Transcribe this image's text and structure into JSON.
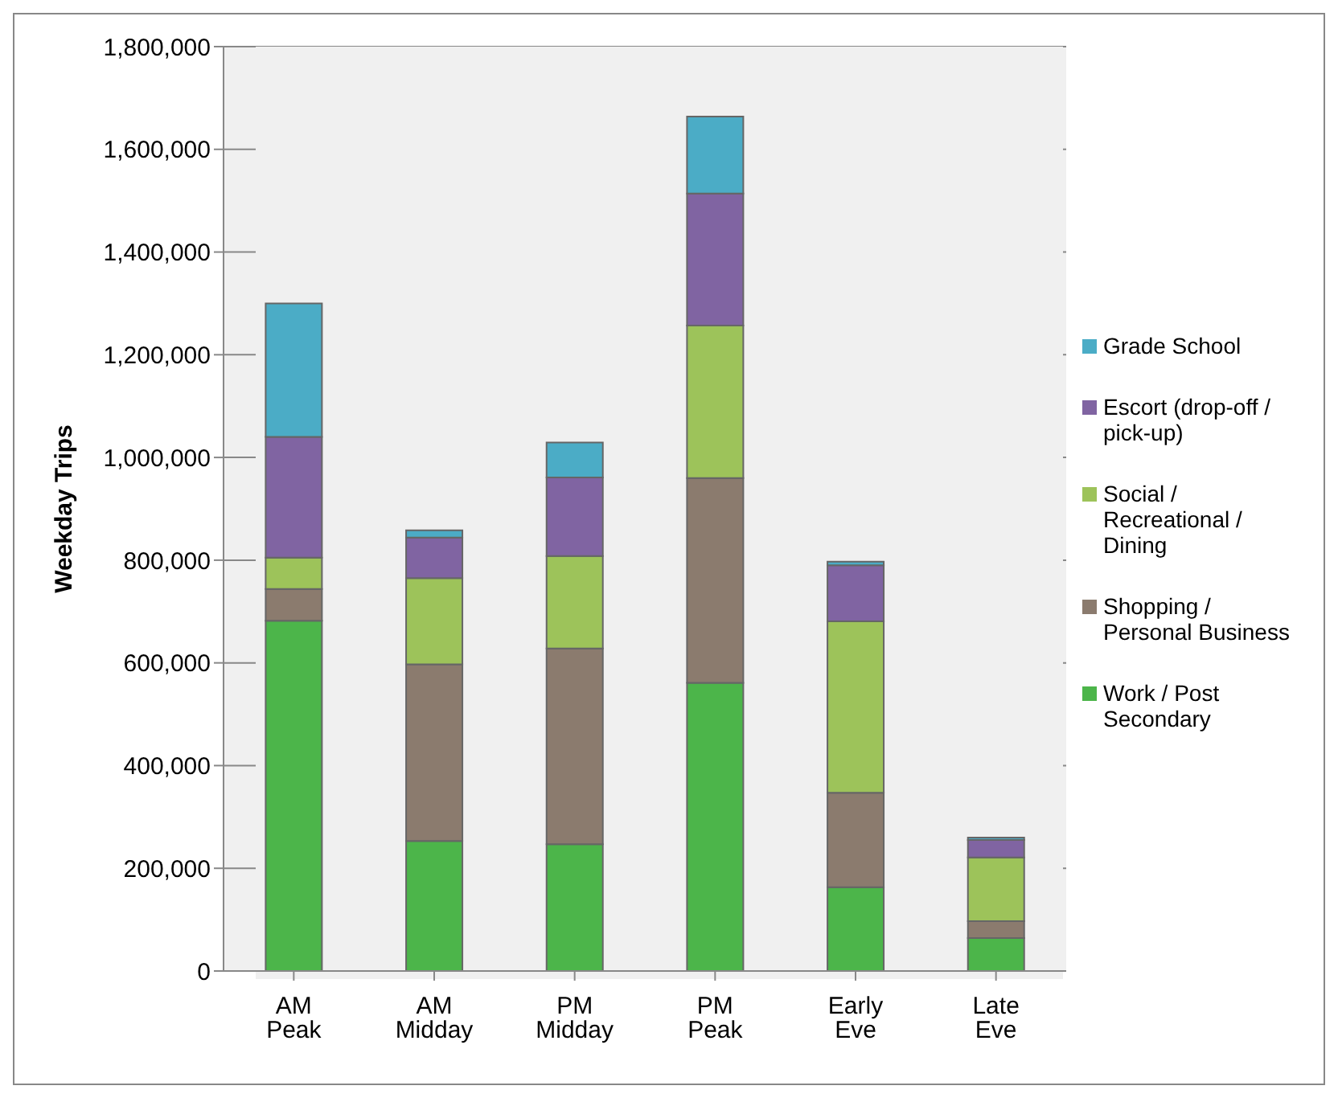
{
  "chart_data": {
    "type": "bar",
    "stacked": true,
    "ylabel": "Weekday Trips",
    "categories": [
      "AM Peak",
      "AM Midday",
      "PM Midday",
      "PM Peak",
      "Early Eve",
      "Late Eve"
    ],
    "series": [
      {
        "name": "Work / Post Secondary",
        "color": "#4cb54a",
        "values": [
          682000,
          253000,
          247000,
          561000,
          163000,
          64000
        ]
      },
      {
        "name": "Shopping / Personal Business",
        "color": "#8b7b6e",
        "values": [
          62000,
          344000,
          381000,
          399000,
          184000,
          33000
        ]
      },
      {
        "name": "Social / Recreational / Dining",
        "color": "#9dc35a",
        "values": [
          61000,
          168000,
          180000,
          297000,
          334000,
          124000
        ]
      },
      {
        "name": "Escort (drop-off / pick-up)",
        "color": "#8064a2",
        "values": [
          235000,
          79000,
          153000,
          257000,
          109000,
          34000
        ]
      },
      {
        "name": "Grade School",
        "color": "#4bacc6",
        "values": [
          260000,
          14000,
          68000,
          150000,
          7000,
          5000
        ]
      }
    ],
    "ylim": [
      0,
      1800000
    ],
    "yticks": [
      0,
      {
        "value": 200000,
        "label": "200,000"
      },
      {
        "value": 400000,
        "label": "400,000"
      },
      {
        "value": 600000,
        "label": "600,000"
      },
      {
        "value": 800000,
        "label": "800,000"
      },
      {
        "value": 1000000,
        "label": "1,000,000"
      },
      {
        "value": 1200000,
        "label": "1,200,000"
      },
      {
        "value": 1400000,
        "label": "1,400,000"
      },
      {
        "value": 1600000,
        "label": "1,600,000"
      },
      {
        "value": 1800000,
        "label": "1,800,000"
      }
    ],
    "grid": "y",
    "legend": "right"
  }
}
